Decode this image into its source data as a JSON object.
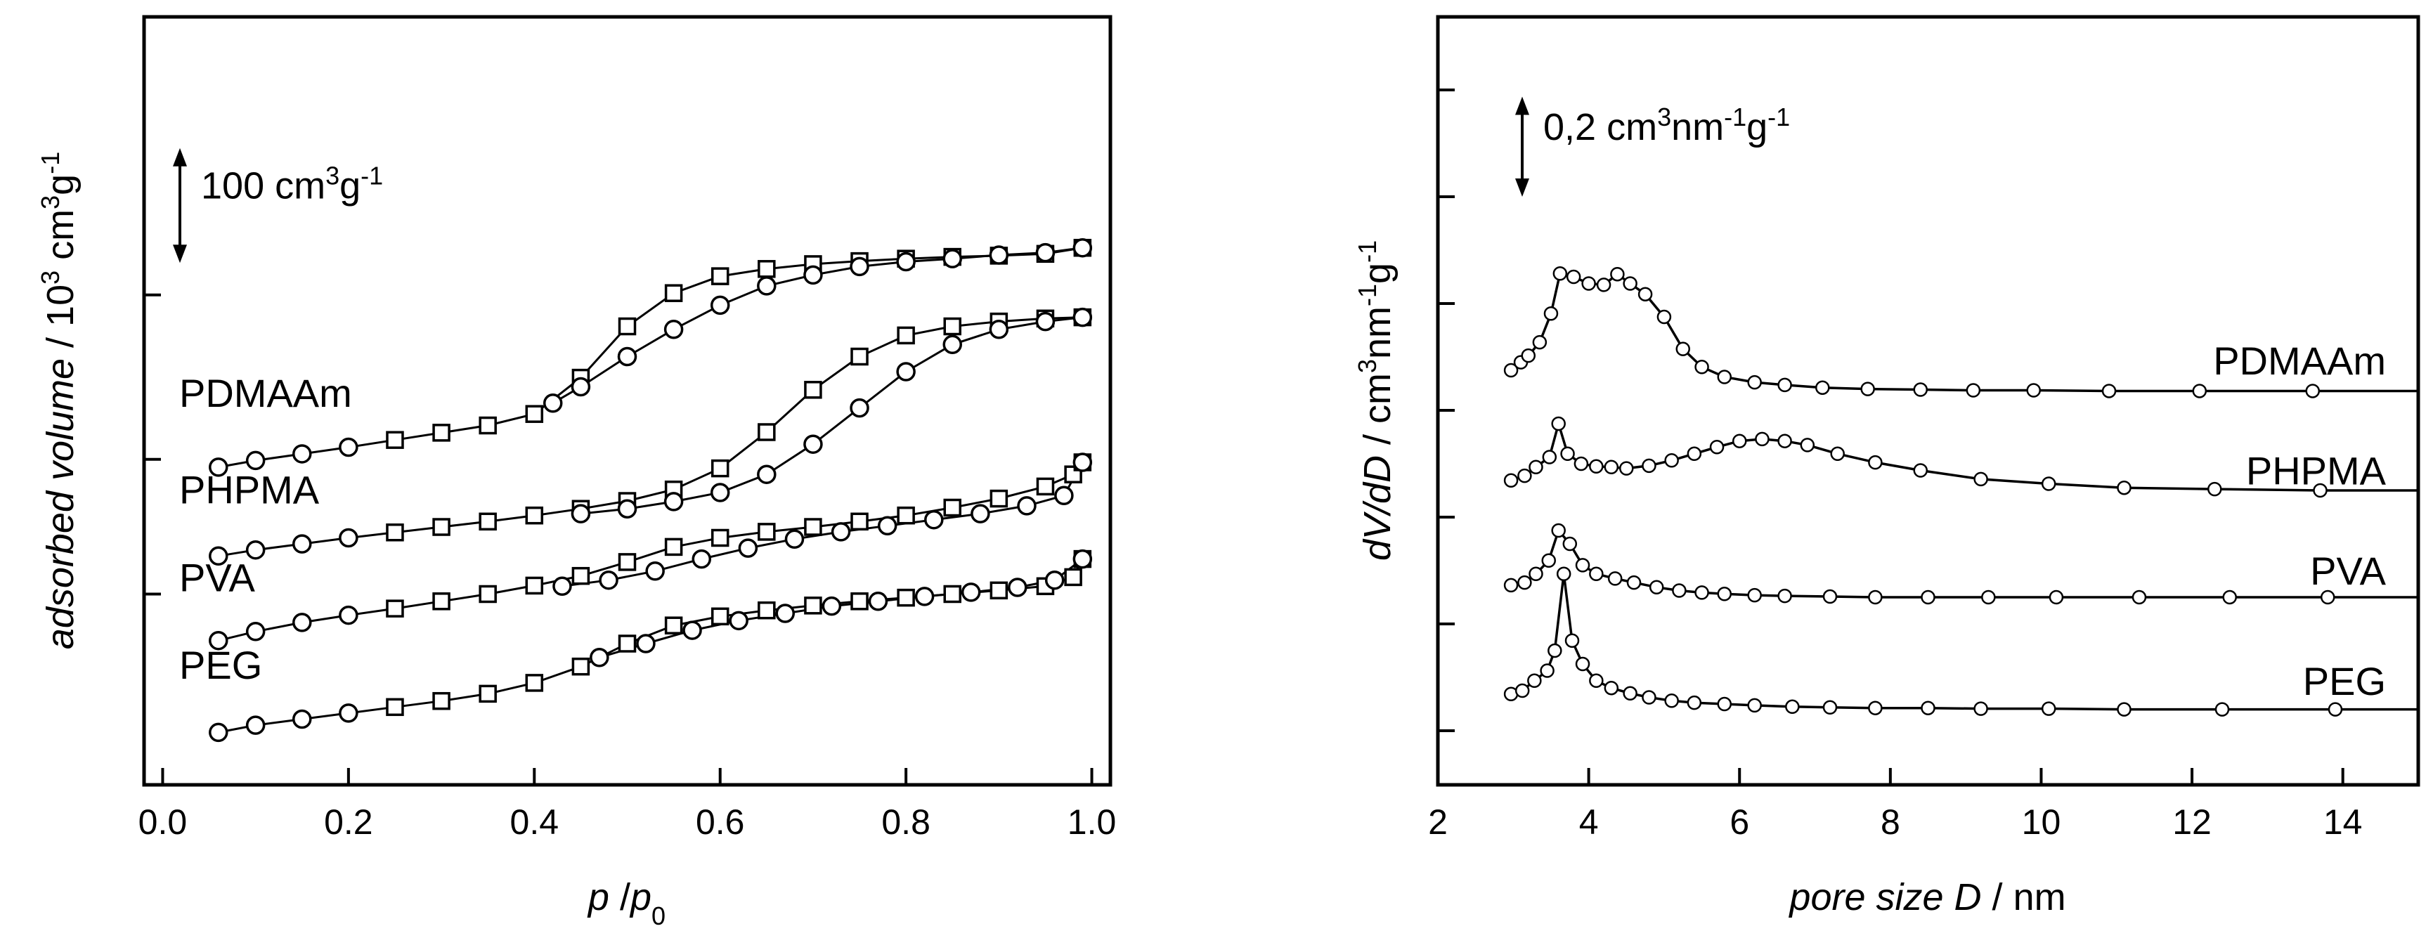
{
  "chart_data": [
    {
      "type": "scatter",
      "panel": "left",
      "title": "",
      "xlabel": {
        "italic1": "p",
        "sep": " /",
        "italic2": "p",
        "sub": "0"
      },
      "ylabel": {
        "italic": "adsorbed volume",
        "sep": " / ",
        "base": "10",
        "sup1": "3",
        "unit": " cm",
        "sup2": "3",
        "unit2": "g",
        "sup3": "-1"
      },
      "xlim": [
        -0.02,
        1.02
      ],
      "xticks": [
        0.0,
        0.2,
        0.4,
        0.6,
        0.8,
        1.0
      ],
      "xtick_labels": [
        "0.0",
        "0.2",
        "0.4",
        "0.6",
        "0.8",
        "1.0"
      ],
      "ylim": [
        0,
        1
      ],
      "yticks": [
        0.232,
        0.455,
        0.727
      ],
      "scale_bar": {
        "base": "100 cm",
        "sup1": "3",
        "unit2": "g",
        "sup2": "-1",
        "y_from": 0.78,
        "y_to": 0.97
      },
      "series": [
        {
          "name": "PDMAAm",
          "label_y": 0.565,
          "adsorption": [
            [
              0.06,
              0.442
            ],
            [
              0.1,
              0.453
            ],
            [
              0.15,
              0.464
            ],
            [
              0.2,
              0.475
            ],
            [
              0.25,
              0.487
            ],
            [
              0.3,
              0.499
            ],
            [
              0.35,
              0.511
            ],
            [
              0.4,
              0.53
            ],
            [
              0.45,
              0.59
            ],
            [
              0.5,
              0.675
            ],
            [
              0.55,
              0.73
            ],
            [
              0.6,
              0.758
            ],
            [
              0.65,
              0.77
            ],
            [
              0.7,
              0.778
            ],
            [
              0.75,
              0.783
            ],
            [
              0.8,
              0.787
            ],
            [
              0.85,
              0.79
            ],
            [
              0.9,
              0.792
            ],
            [
              0.95,
              0.795
            ],
            [
              0.99,
              0.805
            ]
          ],
          "desorption": [
            [
              0.99,
              0.805
            ],
            [
              0.95,
              0.797
            ],
            [
              0.9,
              0.793
            ],
            [
              0.85,
              0.787
            ],
            [
              0.8,
              0.782
            ],
            [
              0.75,
              0.774
            ],
            [
              0.7,
              0.76
            ],
            [
              0.65,
              0.742
            ],
            [
              0.6,
              0.71
            ],
            [
              0.55,
              0.67
            ],
            [
              0.5,
              0.625
            ],
            [
              0.45,
              0.575
            ],
            [
              0.42,
              0.548
            ]
          ]
        },
        {
          "name": "PHPMA",
          "label_y": 0.405,
          "adsorption": [
            [
              0.06,
              0.295
            ],
            [
              0.1,
              0.305
            ],
            [
              0.15,
              0.315
            ],
            [
              0.2,
              0.325
            ],
            [
              0.25,
              0.334
            ],
            [
              0.3,
              0.343
            ],
            [
              0.35,
              0.352
            ],
            [
              0.4,
              0.362
            ],
            [
              0.45,
              0.373
            ],
            [
              0.5,
              0.386
            ],
            [
              0.55,
              0.405
            ],
            [
              0.6,
              0.44
            ],
            [
              0.65,
              0.5
            ],
            [
              0.7,
              0.57
            ],
            [
              0.75,
              0.625
            ],
            [
              0.8,
              0.66
            ],
            [
              0.85,
              0.675
            ],
            [
              0.9,
              0.683
            ],
            [
              0.95,
              0.688
            ],
            [
              0.99,
              0.69
            ]
          ],
          "desorption": [
            [
              0.99,
              0.69
            ],
            [
              0.95,
              0.683
            ],
            [
              0.9,
              0.67
            ],
            [
              0.85,
              0.645
            ],
            [
              0.8,
              0.6
            ],
            [
              0.75,
              0.54
            ],
            [
              0.7,
              0.48
            ],
            [
              0.65,
              0.43
            ],
            [
              0.6,
              0.4
            ],
            [
              0.55,
              0.385
            ],
            [
              0.5,
              0.373
            ],
            [
              0.45,
              0.365
            ]
          ]
        },
        {
          "name": "PVA",
          "label_y": 0.26,
          "adsorption": [
            [
              0.06,
              0.155
            ],
            [
              0.1,
              0.17
            ],
            [
              0.15,
              0.185
            ],
            [
              0.2,
              0.197
            ],
            [
              0.25,
              0.208
            ],
            [
              0.3,
              0.22
            ],
            [
              0.35,
              0.232
            ],
            [
              0.4,
              0.246
            ],
            [
              0.45,
              0.262
            ],
            [
              0.5,
              0.285
            ],
            [
              0.55,
              0.31
            ],
            [
              0.6,
              0.325
            ],
            [
              0.65,
              0.335
            ],
            [
              0.7,
              0.343
            ],
            [
              0.75,
              0.352
            ],
            [
              0.8,
              0.362
            ],
            [
              0.85,
              0.375
            ],
            [
              0.9,
              0.39
            ],
            [
              0.95,
              0.41
            ],
            [
              0.98,
              0.43
            ],
            [
              0.99,
              0.45
            ]
          ],
          "desorption": [
            [
              0.99,
              0.45
            ],
            [
              0.97,
              0.395
            ],
            [
              0.93,
              0.378
            ],
            [
              0.88,
              0.365
            ],
            [
              0.83,
              0.355
            ],
            [
              0.78,
              0.345
            ],
            [
              0.73,
              0.335
            ],
            [
              0.68,
              0.323
            ],
            [
              0.63,
              0.308
            ],
            [
              0.58,
              0.29
            ],
            [
              0.53,
              0.27
            ],
            [
              0.48,
              0.255
            ],
            [
              0.43,
              0.245
            ]
          ]
        },
        {
          "name": "PEG",
          "label_y": 0.115,
          "adsorption": [
            [
              0.06,
              0.003
            ],
            [
              0.1,
              0.015
            ],
            [
              0.15,
              0.025
            ],
            [
              0.2,
              0.035
            ],
            [
              0.25,
              0.045
            ],
            [
              0.3,
              0.055
            ],
            [
              0.35,
              0.067
            ],
            [
              0.4,
              0.085
            ],
            [
              0.45,
              0.112
            ],
            [
              0.5,
              0.15
            ],
            [
              0.55,
              0.18
            ],
            [
              0.6,
              0.195
            ],
            [
              0.65,
              0.205
            ],
            [
              0.7,
              0.213
            ],
            [
              0.75,
              0.22
            ],
            [
              0.8,
              0.226
            ],
            [
              0.85,
              0.232
            ],
            [
              0.9,
              0.238
            ],
            [
              0.95,
              0.245
            ],
            [
              0.98,
              0.26
            ],
            [
              0.99,
              0.29
            ]
          ],
          "desorption": [
            [
              0.99,
              0.29
            ],
            [
              0.96,
              0.255
            ],
            [
              0.92,
              0.243
            ],
            [
              0.87,
              0.235
            ],
            [
              0.82,
              0.228
            ],
            [
              0.77,
              0.22
            ],
            [
              0.72,
              0.212
            ],
            [
              0.67,
              0.2
            ],
            [
              0.62,
              0.188
            ],
            [
              0.57,
              0.172
            ],
            [
              0.52,
              0.15
            ],
            [
              0.47,
              0.127
            ]
          ]
        }
      ]
    },
    {
      "type": "line",
      "panel": "right",
      "title": "",
      "xlabel": {
        "italic": "pore size D",
        "sep": " / ",
        "unit": " nm"
      },
      "ylabel": {
        "italic": "dV/dD",
        "sep": " / ",
        "unit": "cm",
        "sup1": "3",
        "unit2": "nm",
        "sup2": "-1",
        "unit3": "g",
        "sup3": "-1"
      },
      "xlim": [
        2,
        15
      ],
      "xticks": [
        2,
        4,
        6,
        8,
        10,
        12,
        14
      ],
      "xtick_labels": [
        "2",
        "4",
        "6",
        "8",
        "10",
        "12",
        "14"
      ],
      "ylim": [
        0,
        1
      ],
      "yticks": [
        0.0,
        0.16,
        0.32,
        0.48,
        0.64,
        0.8,
        0.96
      ],
      "scale_bar": {
        "base": "0,2 cm",
        "sup1": "3",
        "unit2": "nm",
        "sup2": "-1",
        "unit3": "g",
        "sup3": "-1",
        "y_from": 0.8,
        "y_to": 0.95
      },
      "series": [
        {
          "name": "PDMAAm",
          "label_y": 0.555,
          "points": [
            [
              2.97,
              0.54
            ],
            [
              3.1,
              0.552
            ],
            [
              3.2,
              0.562
            ],
            [
              3.35,
              0.582
            ],
            [
              3.5,
              0.625
            ],
            [
              3.62,
              0.685
            ],
            [
              3.8,
              0.68
            ],
            [
              4.0,
              0.67
            ],
            [
              4.2,
              0.668
            ],
            [
              4.38,
              0.684
            ],
            [
              4.55,
              0.67
            ],
            [
              4.75,
              0.654
            ],
            [
              5.0,
              0.62
            ],
            [
              5.25,
              0.572
            ],
            [
              5.5,
              0.545
            ],
            [
              5.8,
              0.53
            ],
            [
              6.2,
              0.522
            ],
            [
              6.6,
              0.518
            ],
            [
              7.1,
              0.514
            ],
            [
              7.7,
              0.512
            ],
            [
              8.4,
              0.511
            ],
            [
              9.1,
              0.51
            ],
            [
              9.9,
              0.51
            ],
            [
              10.9,
              0.509
            ],
            [
              12.1,
              0.509
            ],
            [
              13.6,
              0.509
            ],
            [
              15,
              0.509
            ]
          ]
        },
        {
          "name": "PHPMA",
          "label_y": 0.39,
          "points": [
            [
              2.97,
              0.375
            ],
            [
              3.15,
              0.382
            ],
            [
              3.3,
              0.395
            ],
            [
              3.48,
              0.41
            ],
            [
              3.6,
              0.46
            ],
            [
              3.72,
              0.415
            ],
            [
              3.9,
              0.4
            ],
            [
              4.1,
              0.396
            ],
            [
              4.3,
              0.395
            ],
            [
              4.5,
              0.393
            ],
            [
              4.8,
              0.397
            ],
            [
              5.1,
              0.405
            ],
            [
              5.4,
              0.415
            ],
            [
              5.7,
              0.425
            ],
            [
              6.0,
              0.434
            ],
            [
              6.3,
              0.437
            ],
            [
              6.6,
              0.434
            ],
            [
              6.9,
              0.428
            ],
            [
              7.3,
              0.415
            ],
            [
              7.8,
              0.402
            ],
            [
              8.4,
              0.39
            ],
            [
              9.2,
              0.377
            ],
            [
              10.1,
              0.37
            ],
            [
              11.1,
              0.364
            ],
            [
              12.3,
              0.362
            ],
            [
              13.7,
              0.36
            ],
            [
              15,
              0.36
            ]
          ]
        },
        {
          "name": "PVA",
          "label_y": 0.24,
          "points": [
            [
              2.97,
              0.218
            ],
            [
              3.15,
              0.222
            ],
            [
              3.3,
              0.235
            ],
            [
              3.47,
              0.255
            ],
            [
              3.6,
              0.3
            ],
            [
              3.75,
              0.28
            ],
            [
              3.92,
              0.248
            ],
            [
              4.1,
              0.235
            ],
            [
              4.35,
              0.228
            ],
            [
              4.6,
              0.222
            ],
            [
              4.9,
              0.215
            ],
            [
              5.2,
              0.21
            ],
            [
              5.5,
              0.207
            ],
            [
              5.8,
              0.205
            ],
            [
              6.2,
              0.203
            ],
            [
              6.6,
              0.202
            ],
            [
              7.2,
              0.201
            ],
            [
              7.8,
              0.2
            ],
            [
              8.5,
              0.2
            ],
            [
              9.3,
              0.2
            ],
            [
              10.2,
              0.2
            ],
            [
              11.3,
              0.2
            ],
            [
              12.5,
              0.2
            ],
            [
              13.8,
              0.2
            ],
            [
              15,
              0.2
            ]
          ]
        },
        {
          "name": "PEG",
          "label_y": 0.075,
          "points": [
            [
              2.97,
              0.055
            ],
            [
              3.12,
              0.06
            ],
            [
              3.28,
              0.075
            ],
            [
              3.45,
              0.09
            ],
            [
              3.55,
              0.12
            ],
            [
              3.67,
              0.235
            ],
            [
              3.78,
              0.135
            ],
            [
              3.92,
              0.1
            ],
            [
              4.1,
              0.075
            ],
            [
              4.3,
              0.064
            ],
            [
              4.55,
              0.056
            ],
            [
              4.8,
              0.05
            ],
            [
              5.1,
              0.045
            ],
            [
              5.4,
              0.042
            ],
            [
              5.8,
              0.04
            ],
            [
              6.2,
              0.038
            ],
            [
              6.7,
              0.036
            ],
            [
              7.2,
              0.035
            ],
            [
              7.8,
              0.034
            ],
            [
              8.5,
              0.034
            ],
            [
              9.2,
              0.033
            ],
            [
              10.1,
              0.033
            ],
            [
              11.1,
              0.032
            ],
            [
              12.4,
              0.032
            ],
            [
              13.9,
              0.032
            ],
            [
              15,
              0.032
            ]
          ]
        }
      ]
    }
  ]
}
